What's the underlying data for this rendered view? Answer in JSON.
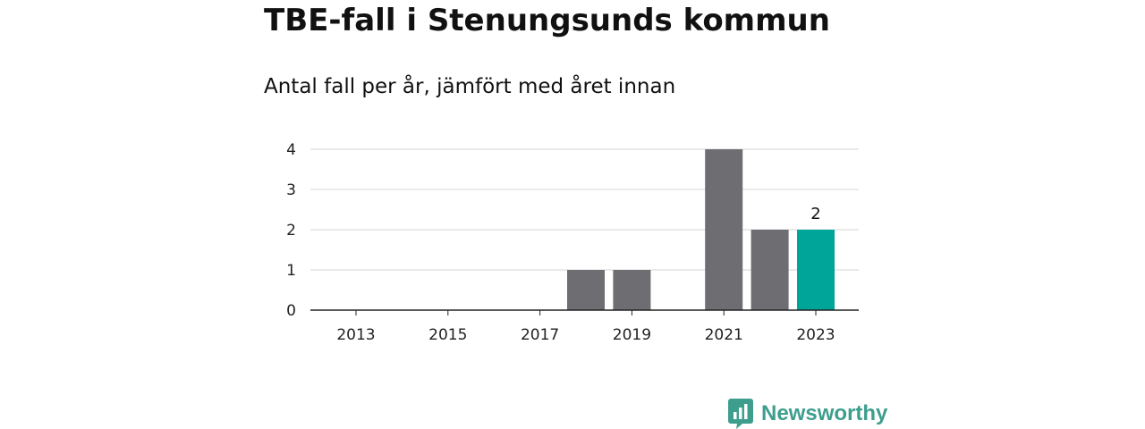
{
  "page": {
    "title": "TBE-fall i Stenungsunds kommun",
    "subtitle": "Antal fall per år, jämfört med året innan"
  },
  "brand": {
    "name": "Newsworthy",
    "icon": "newsworthy-logo-icon",
    "color": "#3e9e8e"
  },
  "chart_data": {
    "type": "bar",
    "title": "TBE-fall i Stenungsunds kommun",
    "subtitle": "Antal fall per år, jämfört med året innan",
    "xlabel": "",
    "ylabel": "",
    "categories": [
      "2013",
      "2014",
      "2015",
      "2016",
      "2017",
      "2018",
      "2019",
      "2020",
      "2021",
      "2022",
      "2023"
    ],
    "x_tick_labels": [
      "2013",
      "2015",
      "2017",
      "2019",
      "2021",
      "2023"
    ],
    "values": [
      0,
      0,
      0,
      0,
      0,
      1,
      1,
      0,
      4,
      2,
      2
    ],
    "y_ticks": [
      "0",
      "1",
      "2",
      "3",
      "4"
    ],
    "ylim": [
      0,
      4
    ],
    "grid": true,
    "bar_color": "#6e6d72",
    "highlight_color": "#00a59a",
    "highlight_category": "2023",
    "data_labels": [
      {
        "category": "2023",
        "text": "2"
      }
    ]
  }
}
